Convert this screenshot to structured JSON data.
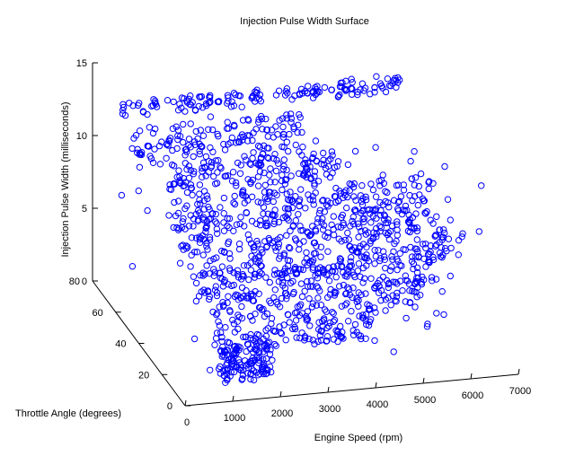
{
  "chart_data": {
    "type": "scatter3d",
    "title": "Injection Pulse Width Surface",
    "xlabel": "Engine Speed (rpm)",
    "ylabel": "Throttle Angle (degrees)",
    "zlabel": "Injection Pulse Width (milliseconds)",
    "xlim": [
      0,
      7000
    ],
    "ylim": [
      0,
      80
    ],
    "zlim": [
      0,
      15
    ],
    "x_ticks": [
      "0",
      "1000",
      "2000",
      "3000",
      "4000",
      "5000",
      "6000",
      "7000"
    ],
    "y_ticks": [
      "0",
      "20",
      "40",
      "60",
      "80"
    ],
    "z_ticks": [
      "0",
      "5",
      "10",
      "15"
    ],
    "marker": "o",
    "color": "#0000ff",
    "bands": [
      {
        "x": [
          500,
          6400
        ],
        "y": [
          75,
          78
        ],
        "z": [
          11.5,
          12.5
        ],
        "n": 150
      },
      {
        "x": [
          600,
          4200
        ],
        "y": [
          64,
          74
        ],
        "z": [
          9.2,
          11.3
        ],
        "n": 140
      },
      {
        "x": [
          1200,
          4800
        ],
        "y": [
          60,
          66
        ],
        "z": [
          7.6,
          9.5
        ],
        "n": 140
      },
      {
        "x": [
          1000,
          6500
        ],
        "y": [
          52,
          58
        ],
        "z": [
          6.0,
          8.0
        ],
        "n": 180
      },
      {
        "x": [
          1000,
          6500
        ],
        "y": [
          44,
          50
        ],
        "z": [
          5.0,
          7.0
        ],
        "n": 180
      },
      {
        "x": [
          1000,
          6500
        ],
        "y": [
          36,
          42
        ],
        "z": [
          3.8,
          6.0
        ],
        "n": 170
      },
      {
        "x": [
          1000,
          6300
        ],
        "y": [
          28,
          34
        ],
        "z": [
          3.4,
          5.3
        ],
        "n": 160
      },
      {
        "x": [
          1000,
          5600
        ],
        "y": [
          20,
          26
        ],
        "z": [
          2.6,
          4.5
        ],
        "n": 140
      },
      {
        "x": [
          1000,
          4300
        ],
        "y": [
          12,
          18
        ],
        "z": [
          1.8,
          3.2
        ],
        "n": 110
      },
      {
        "x": [
          900,
          2000
        ],
        "y": [
          2,
          10
        ],
        "z": [
          0.8,
          3.2
        ],
        "n": 120
      },
      {
        "x": [
          500,
          6500
        ],
        "y": [
          0,
          80
        ],
        "z": [
          0,
          12
        ],
        "n": 90
      }
    ]
  }
}
